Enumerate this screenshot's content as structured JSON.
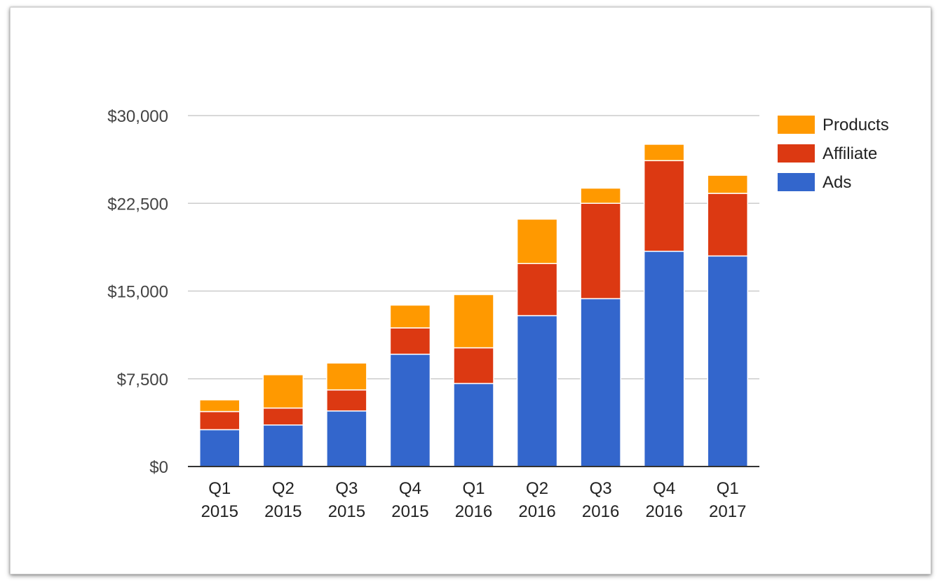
{
  "chart_data": {
    "type": "bar",
    "stacked": true,
    "categories": [
      [
        "Q1",
        "2015"
      ],
      [
        "Q2",
        "2015"
      ],
      [
        "Q3",
        "2015"
      ],
      [
        "Q4",
        "2015"
      ],
      [
        "Q1",
        "2016"
      ],
      [
        "Q2",
        "2016"
      ],
      [
        "Q3",
        "2016"
      ],
      [
        "Q4",
        "2016"
      ],
      [
        "Q1",
        "2017"
      ]
    ],
    "series": [
      {
        "name": "Ads",
        "color": "#3366cc",
        "values": [
          3150,
          3550,
          4750,
          9600,
          7100,
          12900,
          14350,
          18400,
          18000
        ]
      },
      {
        "name": "Affiliate",
        "color": "#dc3912",
        "values": [
          1550,
          1450,
          1800,
          2250,
          3050,
          4450,
          8150,
          7750,
          5350
        ]
      },
      {
        "name": "Products",
        "color": "#ff9900",
        "values": [
          1000,
          2850,
          2300,
          1950,
          4550,
          3800,
          1300,
          1400,
          1550
        ]
      }
    ],
    "ylim": [
      0,
      30000
    ],
    "yticks": [
      0,
      7500,
      15000,
      22500,
      30000
    ],
    "ytick_labels": [
      "$0",
      "$7,500",
      "$15,000",
      "$22,500",
      "$30,000"
    ],
    "legend_order": [
      "Products",
      "Affiliate",
      "Ads"
    ],
    "legend_position": "right",
    "grid": true,
    "title": "",
    "xlabel": "",
    "ylabel": ""
  }
}
